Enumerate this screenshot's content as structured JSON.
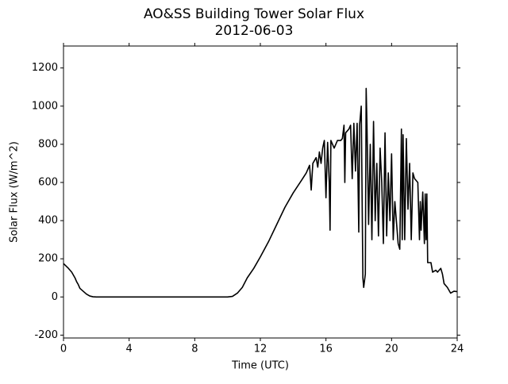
{
  "chart_data": {
    "type": "line",
    "title": "AO&SS Building Tower Solar Flux",
    "subtitle": "2012-06-03",
    "x_label": "Time (UTC)",
    "y_label": "Solar Flux (W/m^2)",
    "xlim": [
      0,
      24
    ],
    "xticks": [
      0,
      4,
      8,
      12,
      16,
      20,
      24
    ],
    "ylim": [
      -215,
      1315
    ],
    "yticks": [
      -200,
      0,
      200,
      400,
      600,
      800,
      1000,
      1200
    ],
    "grid": false,
    "series": [
      {
        "color": "#000000",
        "x": [
          0,
          0.3,
          0.5,
          0.7,
          0.8,
          0.9,
          1.0,
          1.2,
          1.4,
          1.6,
          1.8,
          2.0,
          4,
          8,
          10,
          10.3,
          10.6,
          10.9,
          11.2,
          11.6,
          12,
          12.5,
          13,
          13.5,
          14,
          14.5,
          14.8,
          15.0,
          15.1,
          15.2,
          15.4,
          15.5,
          15.6,
          15.7,
          15.8,
          15.9,
          16.0,
          16.1,
          16.2,
          16.25,
          16.3,
          16.5,
          16.7,
          16.9,
          17.0,
          17.1,
          17.15,
          17.2,
          17.4,
          17.5,
          17.6,
          17.7,
          17.8,
          17.9,
          18.0,
          18.05,
          18.15,
          18.25,
          18.3,
          18.4,
          18.45,
          18.5,
          18.6,
          18.7,
          18.8,
          18.9,
          19.0,
          19.1,
          19.2,
          19.3,
          19.4,
          19.5,
          19.6,
          19.7,
          19.8,
          19.9,
          20.0,
          20.1,
          20.2,
          20.4,
          20.5,
          20.6,
          20.65,
          20.7,
          20.8,
          20.9,
          21.0,
          21.1,
          21.2,
          21.3,
          21.4,
          21.6,
          21.7,
          21.75,
          21.8,
          21.9,
          22.0,
          22.05,
          22.1,
          22.15,
          22.2,
          22.4,
          22.5,
          22.7,
          22.8,
          23.0,
          23.1,
          23.2,
          23.4,
          23.6,
          23.8,
          24
        ],
        "values": [
          175,
          150,
          130,
          100,
          80,
          65,
          45,
          30,
          15,
          5,
          1,
          0,
          0,
          0,
          0,
          3,
          20,
          50,
          100,
          150,
          210,
          290,
          380,
          470,
          545,
          610,
          650,
          690,
          560,
          700,
          730,
          680,
          760,
          700,
          780,
          820,
          520,
          810,
          600,
          350,
          820,
          780,
          820,
          820,
          830,
          900,
          600,
          860,
          880,
          900,
          620,
          910,
          660,
          910,
          340,
          900,
          1000,
          100,
          50,
          120,
          1093,
          900,
          380,
          800,
          300,
          920,
          400,
          700,
          320,
          780,
          600,
          280,
          860,
          320,
          650,
          400,
          750,
          300,
          500,
          280,
          250,
          880,
          300,
          850,
          300,
          830,
          460,
          700,
          300,
          650,
          620,
          600,
          300,
          500,
          350,
          550,
          280,
          540,
          300,
          540,
          180,
          180,
          130,
          140,
          130,
          150,
          120,
          70,
          50,
          20,
          30,
          28
        ]
      }
    ]
  }
}
